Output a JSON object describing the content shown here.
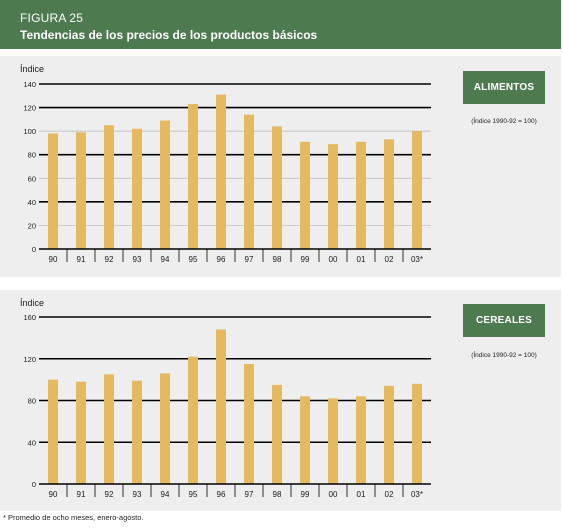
{
  "header": {
    "figure_label": "FIGURA 25",
    "title": "Tendencias de los precios de los productos básicos"
  },
  "colors": {
    "accent": "#4d7a4f",
    "bar": "#e5b95f",
    "panel_background": "#eeeeee"
  },
  "panels": [
    {
      "tag": "ALIMENTOS",
      "index_note": "(Índice 1990-92 = 100)"
    },
    {
      "tag": "CEREALES",
      "index_note": "(Índice 1990-92 = 100)"
    }
  ],
  "footnote": "* Promedio de ocho meses, enero-agosto.",
  "chart_data": [
    {
      "type": "bar",
      "ylabel": "Índice",
      "categories": [
        "90",
        "91",
        "92",
        "93",
        "94",
        "95",
        "96",
        "97",
        "98",
        "99",
        "00",
        "01",
        "02",
        "03*"
      ],
      "values": [
        98,
        99,
        105,
        102,
        109,
        123,
        131,
        114,
        104,
        91,
        89,
        91,
        93,
        100
      ],
      "ylim": [
        0,
        140
      ],
      "yticks": [
        0,
        20,
        40,
        60,
        80,
        100,
        120,
        140
      ],
      "major_grid": [
        40,
        80,
        120
      ],
      "grid": true
    },
    {
      "type": "bar",
      "ylabel": "Índice",
      "categories": [
        "90",
        "91",
        "92",
        "93",
        "94",
        "95",
        "96",
        "97",
        "98",
        "99",
        "00",
        "01",
        "02",
        "03*"
      ],
      "values": [
        100,
        98,
        105,
        99,
        106,
        122,
        148,
        115,
        95,
        84,
        82,
        84,
        94,
        96
      ],
      "ylim": [
        0,
        160
      ],
      "yticks": [
        0,
        40,
        80,
        120,
        160
      ],
      "major_grid": [
        40,
        80,
        120
      ],
      "grid": true
    }
  ]
}
